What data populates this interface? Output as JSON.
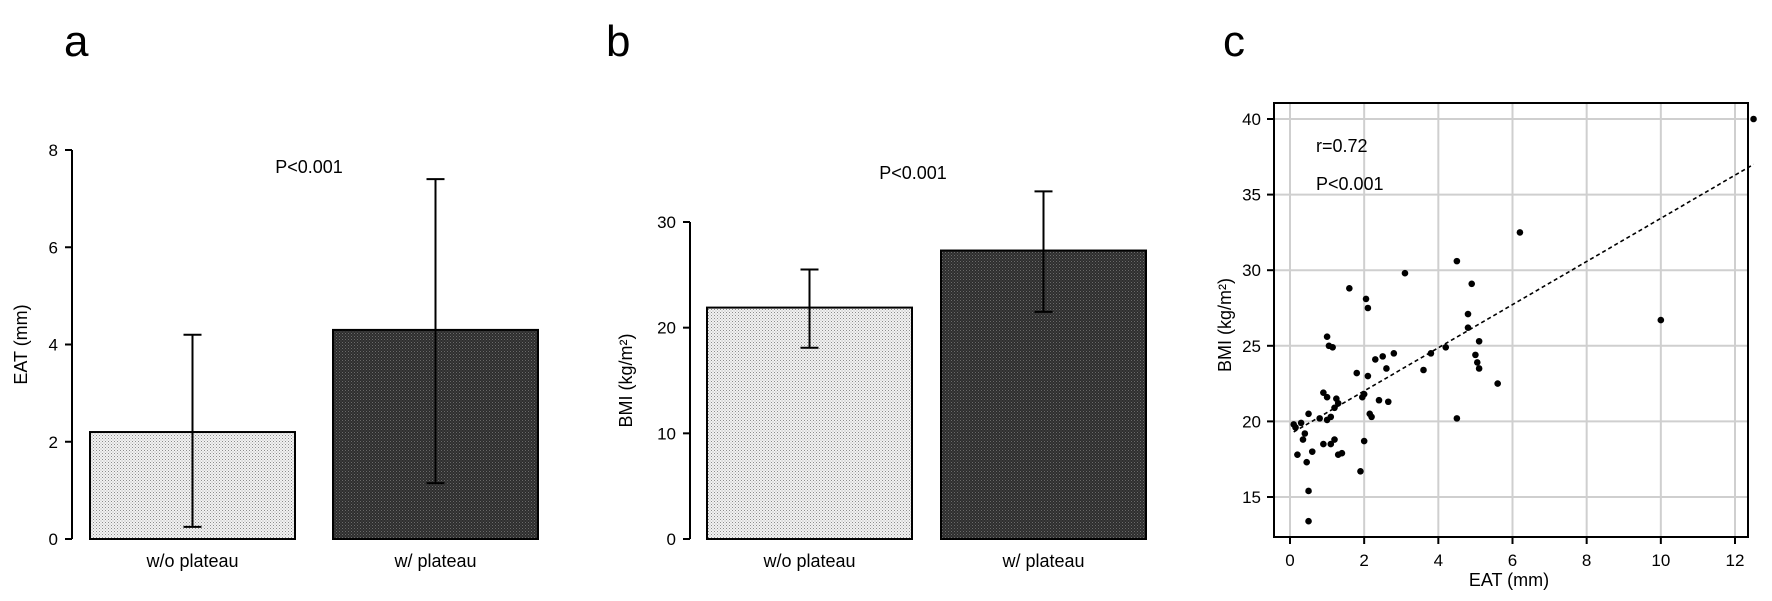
{
  "chart_data": [
    {
      "panel": "a",
      "type": "bar",
      "categories": [
        "w/o plateau",
        "w/ plateau"
      ],
      "values": [
        2.2,
        4.3
      ],
      "error_low": [
        0.25,
        1.15
      ],
      "error_high": [
        4.2,
        7.4
      ],
      "ylabel": "EAT (mm)",
      "ylim": [
        0,
        8
      ],
      "yticks": [
        0,
        2,
        4,
        6,
        8
      ],
      "annotation": "P<0.001",
      "bar_colors": [
        "#d9d9d9",
        "#3a3a3a"
      ],
      "grid": false
    },
    {
      "panel": "b",
      "type": "bar",
      "categories": [
        "w/o plateau",
        "w/ plateau"
      ],
      "values": [
        21.9,
        27.3
      ],
      "error_low": [
        18.1,
        21.5
      ],
      "error_high": [
        25.5,
        32.9
      ],
      "ylabel": "BMI (kg/m²)",
      "ylim": [
        0,
        30
      ],
      "yticks": [
        0,
        10,
        20,
        30
      ],
      "annotation": "P<0.001",
      "bar_colors": [
        "#d9d9d9",
        "#3a3a3a"
      ],
      "grid": false
    },
    {
      "panel": "c",
      "type": "scatter",
      "xlabel": "EAT (mm)",
      "ylabel": "BMI (kg/m²)",
      "xlim": [
        0,
        12
      ],
      "ylim": [
        15,
        40
      ],
      "xticks": [
        0,
        2,
        4,
        6,
        8,
        10,
        12
      ],
      "yticks": [
        15,
        20,
        25,
        30,
        35,
        40
      ],
      "grid": true,
      "annotations": [
        "r=0.72",
        "P<0.001"
      ],
      "trendline": {
        "x": [
          0.1,
          12.5
        ],
        "y": [
          19.3,
          37.0
        ],
        "style": "dashed"
      },
      "points": {
        "x": [
          0.1,
          0.15,
          0.2,
          0.3,
          0.35,
          0.4,
          0.45,
          0.5,
          0.5,
          0.5,
          0.6,
          0.8,
          0.9,
          0.9,
          1.0,
          1.0,
          1.0,
          1.05,
          1.1,
          1.1,
          1.15,
          1.2,
          1.2,
          1.25,
          1.3,
          1.3,
          1.4,
          1.6,
          1.8,
          1.9,
          1.95,
          2.0,
          2.0,
          2.05,
          2.1,
          2.1,
          2.15,
          2.2,
          2.3,
          2.4,
          2.5,
          2.6,
          2.65,
          2.8,
          3.1,
          3.6,
          3.8,
          4.2,
          4.5,
          4.5,
          4.8,
          4.8,
          4.9,
          5.0,
          5.05,
          5.1,
          5.1,
          5.6,
          6.2,
          10.0,
          12.5
        ],
        "y": [
          19.8,
          19.6,
          17.8,
          19.9,
          18.8,
          19.2,
          17.3,
          20.5,
          15.4,
          13.4,
          18.0,
          20.2,
          18.5,
          21.9,
          21.6,
          20.1,
          25.6,
          25.0,
          20.3,
          18.5,
          24.9,
          20.9,
          18.8,
          21.5,
          21.2,
          17.8,
          17.9,
          28.8,
          23.2,
          16.7,
          21.6,
          21.8,
          18.7,
          28.1,
          27.5,
          23.0,
          20.5,
          20.3,
          24.1,
          21.4,
          24.3,
          23.5,
          21.3,
          24.5,
          29.8,
          23.4,
          24.5,
          24.9,
          30.6,
          20.2,
          27.1,
          26.2,
          29.1,
          24.4,
          23.9,
          25.3,
          23.5,
          22.5,
          32.5,
          26.7,
          40.0
        ]
      }
    }
  ]
}
